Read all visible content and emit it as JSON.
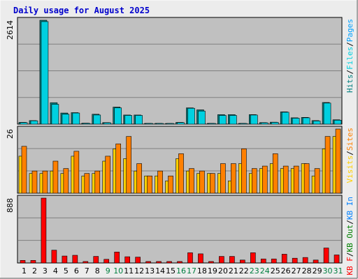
{
  "colors": {
    "background": "#c0c0c0",
    "frame": "#ececec",
    "title": "#0000cc",
    "gridline": "#808080",
    "weekend_label": "#008040",
    "weekday_label": "#000000",
    "hits": "#008080",
    "files": "#00d0e0",
    "pages": "#00a0ff",
    "visits": "#ffd000",
    "sites": "#ff8000",
    "kb_in": "#008080",
    "kb_out": "#0080ff",
    "kb_f": "#ff0000"
  },
  "chart_data": [
    {
      "type": "bar",
      "panel": "hits-files-pages",
      "title": "Daily usage for August 2025",
      "categories": [
        "1",
        "2",
        "3",
        "4",
        "5",
        "6",
        "7",
        "8",
        "9",
        "10",
        "11",
        "12",
        "13",
        "14",
        "15",
        "16",
        "17",
        "18",
        "19",
        "20",
        "21",
        "22",
        "23",
        "24",
        "25",
        "26",
        "27",
        "28",
        "29",
        "30",
        "31"
      ],
      "weekend_days": [
        "9",
        "10",
        "16",
        "17",
        "23",
        "24",
        "30",
        "31"
      ],
      "ymax_label": "2614",
      "ylim": [
        0,
        2614
      ],
      "legend": [
        {
          "text": "Hits",
          "color": "#008080"
        },
        {
          "text": "/",
          "color": "#000000"
        },
        {
          "text": "Files",
          "color": "#00d0e0"
        },
        {
          "text": "/",
          "color": "#000000"
        },
        {
          "text": "Pages",
          "color": "#00a0ff"
        }
      ],
      "series": [
        {
          "name": "Hits",
          "values": [
            45,
            90,
            2614,
            540,
            280,
            290,
            25,
            250,
            40,
            430,
            230,
            230,
            20,
            20,
            15,
            45,
            410,
            360,
            20,
            240,
            240,
            20,
            240,
            40,
            50,
            310,
            160,
            170,
            90,
            545,
            110
          ]
        },
        {
          "name": "Files",
          "values": [
            40,
            85,
            2580,
            500,
            250,
            280,
            20,
            230,
            35,
            410,
            220,
            220,
            18,
            18,
            12,
            40,
            400,
            330,
            18,
            220,
            220,
            18,
            230,
            35,
            45,
            300,
            150,
            160,
            80,
            530,
            100
          ]
        }
      ]
    },
    {
      "type": "bar",
      "panel": "visits-sites",
      "categories": [
        "1",
        "2",
        "3",
        "4",
        "5",
        "6",
        "7",
        "8",
        "9",
        "10",
        "11",
        "12",
        "13",
        "14",
        "15",
        "16",
        "17",
        "18",
        "19",
        "20",
        "21",
        "22",
        "23",
        "24",
        "25",
        "26",
        "27",
        "28",
        "29",
        "30",
        "31"
      ],
      "ymax_label": "26",
      "ylim": [
        0,
        26
      ],
      "legend": [
        {
          "text": "Visits",
          "color": "#ffd000"
        },
        {
          "text": "/",
          "color": "#000000"
        },
        {
          "text": "Sites",
          "color": "#ff8000"
        }
      ],
      "series": [
        {
          "name": "Visits",
          "values": [
            15,
            8,
            8,
            9,
            8,
            15,
            7,
            8,
            13,
            18,
            14,
            9,
            7,
            7,
            5,
            14,
            9,
            8,
            8,
            8,
            5,
            12,
            8,
            10,
            12,
            10,
            10,
            12,
            7,
            18,
            23
          ]
        },
        {
          "name": "Sites",
          "values": [
            19,
            9,
            9,
            13,
            10,
            17,
            8,
            9,
            15,
            20,
            23,
            12,
            7,
            9,
            7,
            16,
            10,
            9,
            8,
            12,
            12,
            18,
            10,
            11,
            16,
            11,
            11,
            12,
            10,
            23,
            26
          ]
        }
      ]
    },
    {
      "type": "bar",
      "panel": "kbytes",
      "categories": [
        "1",
        "2",
        "3",
        "4",
        "5",
        "6",
        "7",
        "8",
        "9",
        "10",
        "11",
        "12",
        "13",
        "14",
        "15",
        "16",
        "17",
        "18",
        "19",
        "20",
        "21",
        "22",
        "23",
        "24",
        "25",
        "26",
        "27",
        "28",
        "29",
        "30",
        "31"
      ],
      "ymax_label": "888",
      "ylim": [
        0,
        888
      ],
      "legend": [
        {
          "text": "KB F",
          "color": "#ff0000"
        },
        {
          "text": "/",
          "color": "#000000"
        },
        {
          "text": "KB Out",
          "color": "#008000"
        },
        {
          "text": "/",
          "color": "#000000"
        },
        {
          "text": "KB In",
          "color": "#0080ff"
        }
      ],
      "series": [
        {
          "name": "KB F",
          "values": [
            35,
            35,
            888,
            175,
            95,
            105,
            20,
            90,
            50,
            150,
            85,
            80,
            20,
            20,
            20,
            20,
            140,
            125,
            20,
            90,
            90,
            40,
            140,
            55,
            55,
            120,
            65,
            75,
            40,
            205,
            110
          ]
        }
      ]
    }
  ]
}
